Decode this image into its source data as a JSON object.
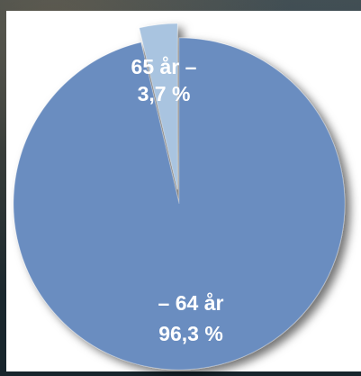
{
  "chart_data": {
    "type": "pie",
    "slices": [
      {
        "label_line1": "– 64 år",
        "label_line2": "96,3 %",
        "value": 96.3,
        "color": "#6a8dc0"
      },
      {
        "label_line1": "65 år –",
        "label_line2": "3,7 %",
        "value": 3.7,
        "color": "#a9c4e0"
      }
    ]
  }
}
